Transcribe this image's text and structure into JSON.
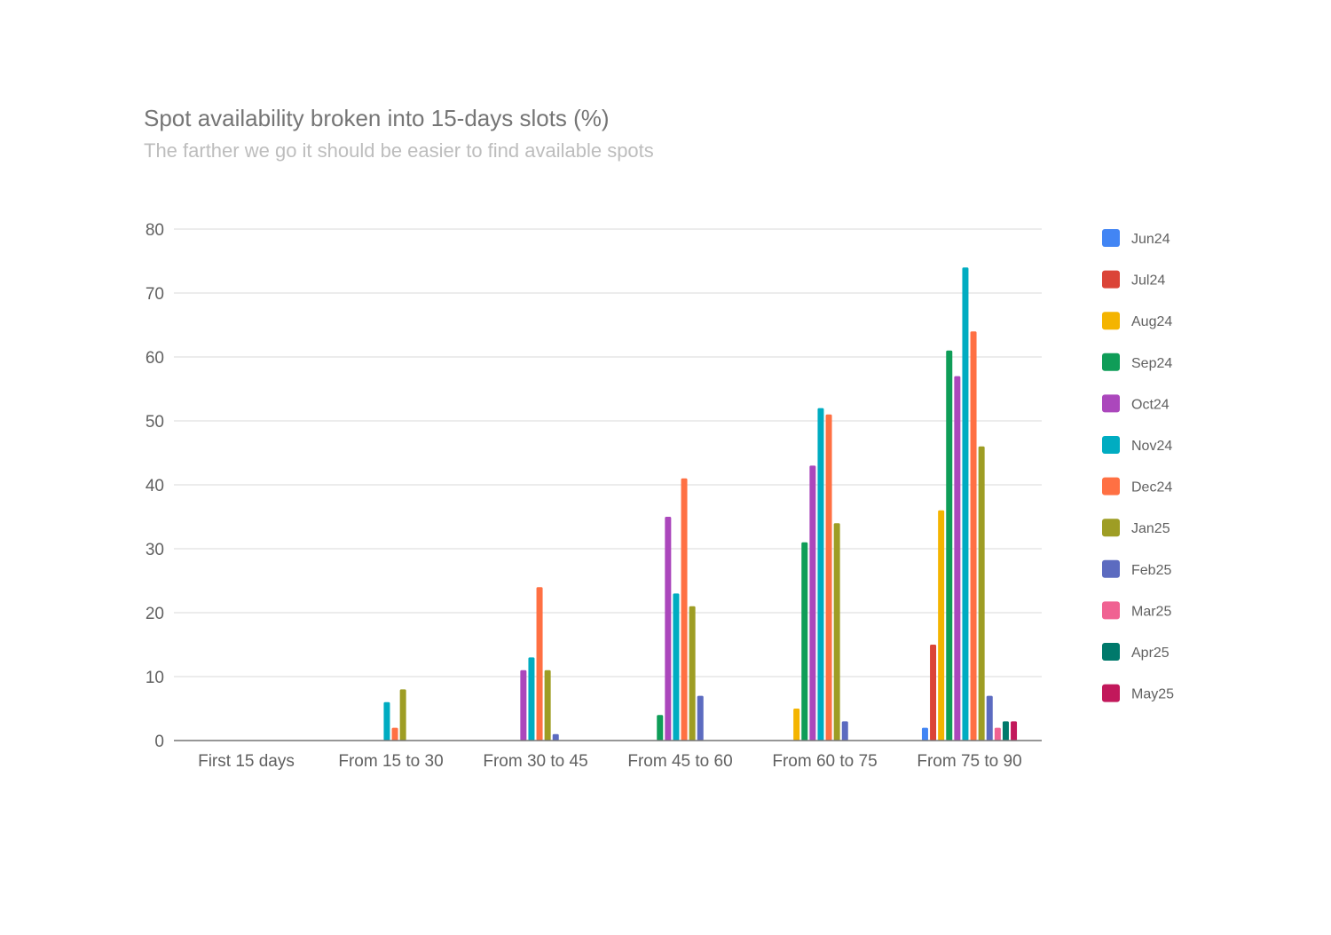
{
  "chart_data": {
    "type": "bar",
    "title": "Spot availability broken into 15-days slots (%)",
    "subtitle": "The farther we go it should be easier to find available spots",
    "xlabel": "",
    "ylabel": "",
    "ylim": [
      0,
      80
    ],
    "yticks": [
      0,
      10,
      20,
      30,
      40,
      50,
      60,
      70,
      80
    ],
    "grid": true,
    "legend_position": "right",
    "categories": [
      "First 15 days",
      "From 15 to 30",
      "From 30 to 45",
      "From 45 to 60",
      "From 60 to 75",
      "From 75 to 90"
    ],
    "series": [
      {
        "name": "Jun24",
        "color": "#4285f4",
        "values": [
          0,
          0,
          0,
          0,
          0,
          2
        ]
      },
      {
        "name": "Jul24",
        "color": "#db4437",
        "values": [
          0,
          0,
          0,
          0,
          0,
          15
        ]
      },
      {
        "name": "Aug24",
        "color": "#f4b400",
        "values": [
          0,
          0,
          0,
          0,
          5,
          36
        ]
      },
      {
        "name": "Sep24",
        "color": "#0f9d58",
        "values": [
          0,
          0,
          0,
          4,
          31,
          61
        ]
      },
      {
        "name": "Oct24",
        "color": "#ab47bc",
        "values": [
          0,
          0,
          11,
          35,
          43,
          57
        ]
      },
      {
        "name": "Nov24",
        "color": "#00acc1",
        "values": [
          0,
          6,
          13,
          23,
          52,
          74
        ]
      },
      {
        "name": "Dec24",
        "color": "#ff7043",
        "values": [
          0,
          2,
          24,
          41,
          51,
          64
        ]
      },
      {
        "name": "Jan25",
        "color": "#9e9d24",
        "values": [
          0,
          8,
          11,
          21,
          34,
          46
        ]
      },
      {
        "name": "Feb25",
        "color": "#5c6bc0",
        "values": [
          0,
          0,
          1,
          7,
          3,
          7
        ]
      },
      {
        "name": "Mar25",
        "color": "#f06292",
        "values": [
          0,
          0,
          0,
          0,
          0,
          2
        ]
      },
      {
        "name": "Apr25",
        "color": "#00796b",
        "values": [
          0,
          0,
          0,
          0,
          0,
          3
        ]
      },
      {
        "name": "May25",
        "color": "#c2185b",
        "values": [
          0,
          0,
          0,
          0,
          0,
          3
        ]
      }
    ]
  }
}
